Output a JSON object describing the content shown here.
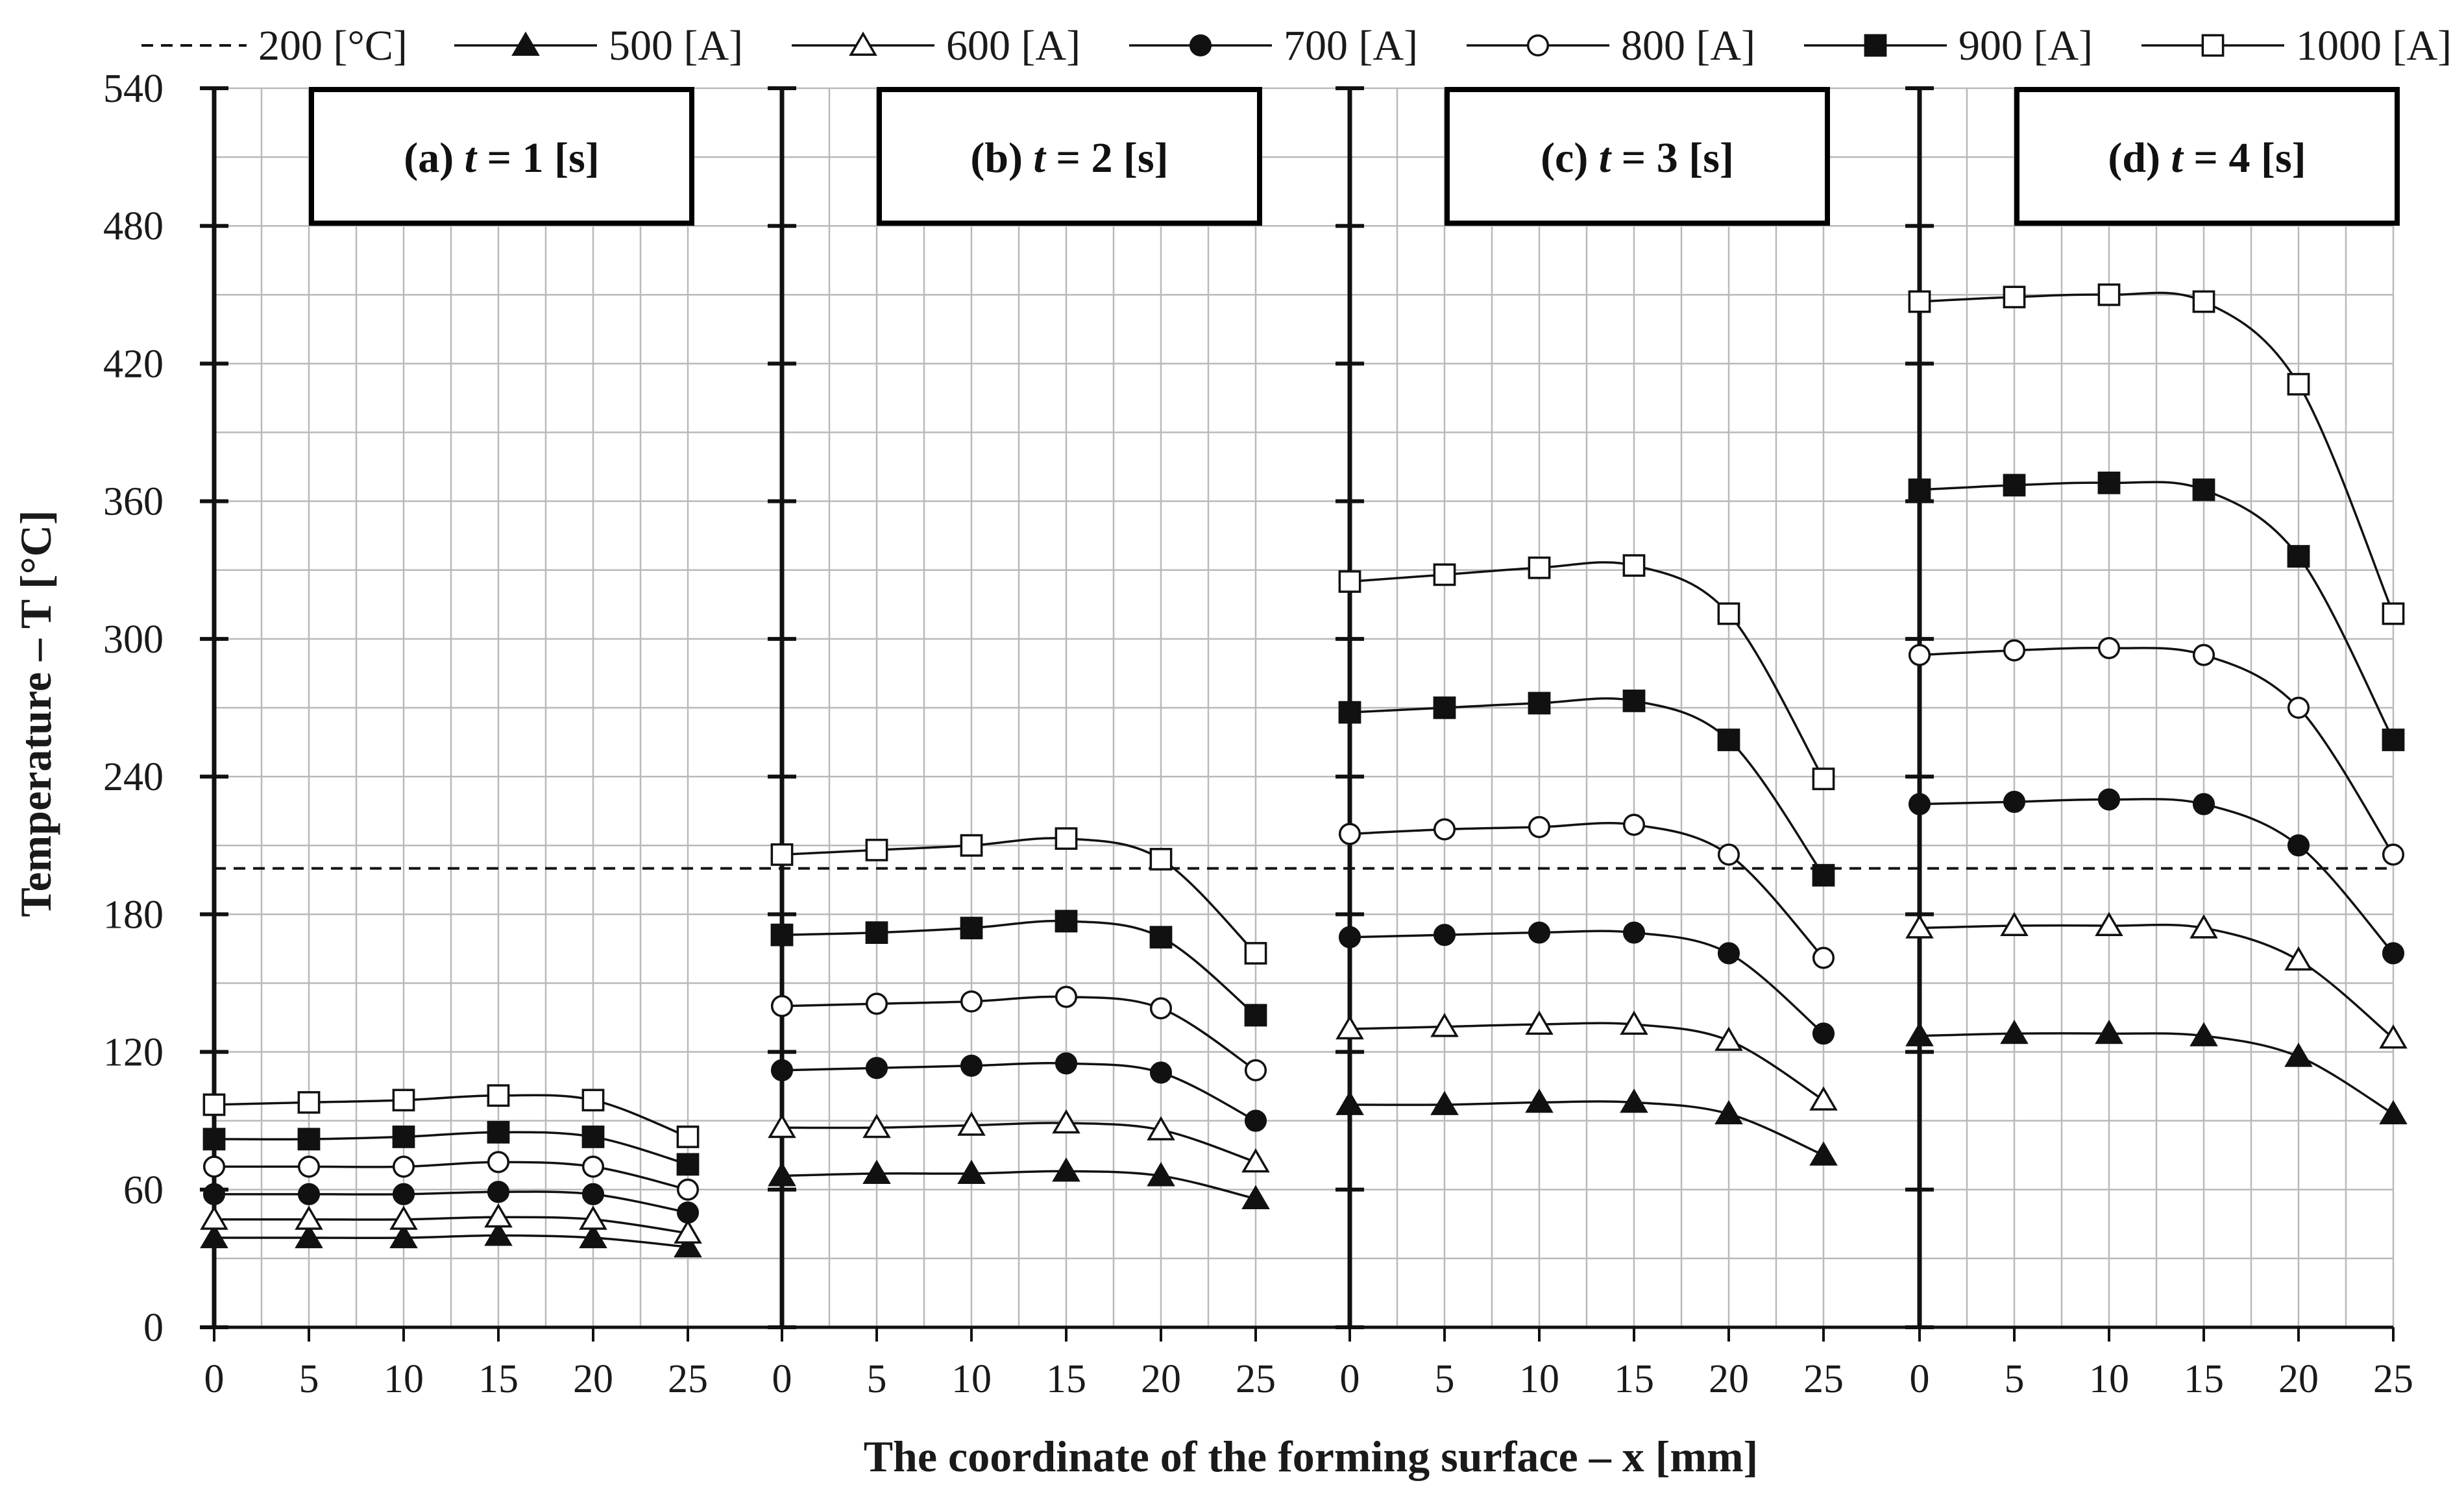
{
  "chart_data": {
    "type": "line",
    "ylabel": "Temperature – T [°C]",
    "xlabel": "The coordinate of the forming surface – x [mm]",
    "ylim": [
      0,
      540
    ],
    "yticks": [
      0,
      60,
      120,
      180,
      240,
      300,
      360,
      420,
      480,
      540
    ],
    "xticks": [
      0,
      5,
      10,
      15,
      20,
      25
    ],
    "x": [
      0,
      5,
      10,
      15,
      20,
      25
    ],
    "grid": true,
    "legend_position": "top",
    "reference_line": {
      "name": "200 [°C]",
      "value": 200
    },
    "series_names": [
      "500 [A]",
      "600 [A]",
      "700 [A]",
      "800 [A]",
      "900 [A]",
      "1000 [A]"
    ],
    "markers": [
      "filled-triangle",
      "open-triangle",
      "filled-circle",
      "open-circle",
      "filled-square",
      "open-square"
    ],
    "panels": [
      {
        "label_pre": "(a) ",
        "label_var": "t",
        "label_post": " = 1 [s]",
        "series": [
          [
            39,
            39,
            39,
            40,
            39,
            35
          ],
          [
            47,
            47,
            47,
            48,
            47,
            41
          ],
          [
            58,
            58,
            58,
            59,
            58,
            50
          ],
          [
            70,
            70,
            70,
            72,
            70,
            60
          ],
          [
            82,
            82,
            83,
            85,
            83,
            71
          ],
          [
            97,
            98,
            99,
            101,
            99,
            83
          ]
        ]
      },
      {
        "label_pre": "(b) ",
        "label_var": "t",
        "label_post": " = 2 [s]",
        "series": [
          [
            66,
            67,
            67,
            68,
            66,
            56
          ],
          [
            87,
            87,
            88,
            89,
            86,
            72
          ],
          [
            112,
            113,
            114,
            115,
            111,
            90
          ],
          [
            140,
            141,
            142,
            144,
            139,
            112
          ],
          [
            171,
            172,
            174,
            177,
            170,
            136
          ],
          [
            206,
            208,
            210,
            213,
            204,
            163
          ]
        ]
      },
      {
        "label_pre": "(c) ",
        "label_var": "t",
        "label_post": " = 3 [s]",
        "series": [
          [
            97,
            97,
            98,
            98,
            93,
            75
          ],
          [
            130,
            131,
            132,
            132,
            125,
            99
          ],
          [
            170,
            171,
            172,
            172,
            163,
            128
          ],
          [
            215,
            217,
            218,
            219,
            206,
            161
          ],
          [
            268,
            270,
            272,
            273,
            256,
            197
          ],
          [
            325,
            328,
            331,
            332,
            311,
            239
          ]
        ]
      },
      {
        "label_pre": "(d) ",
        "label_var": "t",
        "label_post": " = 4 [s]",
        "series": [
          [
            127,
            128,
            128,
            127,
            118,
            93
          ],
          [
            174,
            175,
            175,
            174,
            160,
            126
          ],
          [
            228,
            229,
            230,
            228,
            210,
            163
          ],
          [
            293,
            295,
            296,
            293,
            270,
            206
          ],
          [
            365,
            367,
            368,
            365,
            336,
            256
          ],
          [
            447,
            449,
            450,
            447,
            411,
            311
          ]
        ]
      }
    ],
    "colors": {
      "line": "#111111",
      "grid": "#b9b9b9",
      "box": "#000000",
      "open_fill": "#ffffff"
    }
  }
}
